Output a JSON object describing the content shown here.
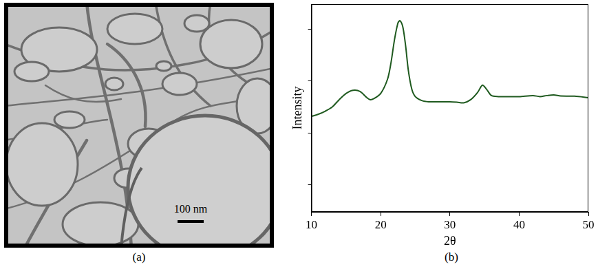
{
  "micrograph": {
    "caption": "(a)",
    "scale_bar": "100 nm"
  },
  "chart_data": {
    "type": "line",
    "caption": "(b)",
    "x_label": "2θ",
    "y_label": "Intensity",
    "x": [
      10,
      11,
      12,
      13,
      14,
      15,
      16,
      17,
      18,
      18.5,
      19,
      20,
      21,
      21.5,
      22,
      22.5,
      22.8,
      23.2,
      23.6,
      24,
      24.5,
      25,
      26,
      27,
      28,
      29,
      30,
      31,
      32,
      33,
      34,
      34.7,
      35.3,
      36,
      37,
      38,
      40,
      42,
      43,
      44,
      45,
      46,
      48,
      50
    ],
    "values": [
      46,
      47,
      48.5,
      50.5,
      54,
      57,
      58.5,
      58,
      55,
      54,
      54.5,
      57,
      64,
      72,
      83,
      91,
      92,
      89,
      80,
      68,
      59,
      55.5,
      53.5,
      53,
      53,
      53,
      53,
      52.8,
      52.5,
      54,
      57.5,
      61,
      59,
      56,
      55.5,
      55.5,
      55.5,
      56,
      55.5,
      56,
      56.3,
      55.8,
      55.7,
      55
    ],
    "color": "#1f5a1f",
    "xlim": [
      10,
      50
    ],
    "xticks": [
      10,
      20,
      30,
      40,
      50
    ],
    "ylim": [
      0,
      100
    ],
    "yticks": [
      13,
      38,
      63,
      88
    ],
    "grid": false,
    "tick_labels": "x"
  }
}
